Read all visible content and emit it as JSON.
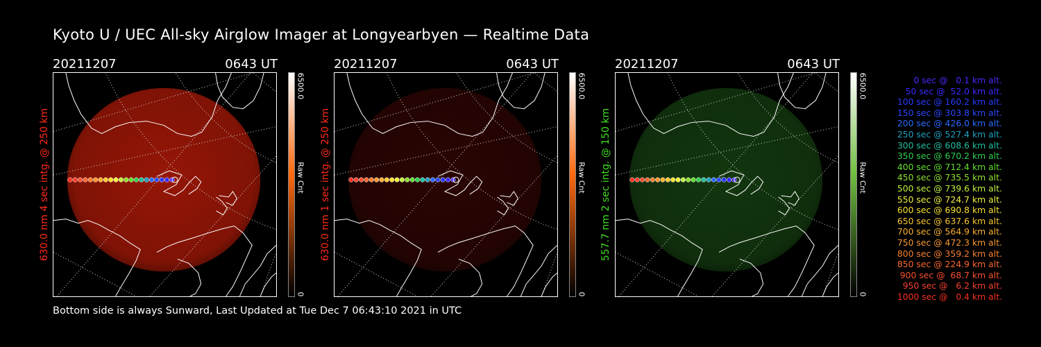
{
  "title": "Kyoto U / UEC All-sky Airglow Imager at Longyearbyen — Realtime Data",
  "panels": [
    {
      "date": "20211207",
      "time": "0643 UT",
      "ylabel": "630.0 nm 4 sec intg. @ 250 km",
      "label_color": "#ff2a1a",
      "glow_color": "#b01a08",
      "glow_level": 0.85,
      "cbar_max": "6500.0",
      "cbar_min": "0",
      "cbar_unit": "Raw Cnt",
      "cbar_top": "#ffffff",
      "cbar_mid": "#ff6a10",
      "cbar_bottom": "#000000"
    },
    {
      "date": "20211207",
      "time": "0643 UT",
      "ylabel": "630.0 nm 1 sec intg. @ 250 km",
      "label_color": "#ff2a1a",
      "glow_color": "#4a0904",
      "glow_level": 0.55,
      "cbar_max": "6500.0",
      "cbar_min": "0",
      "cbar_unit": "Raw Cnt",
      "cbar_top": "#ffffff",
      "cbar_mid": "#ff6a10",
      "cbar_bottom": "#000000"
    },
    {
      "date": "20211207",
      "time": "0643 UT",
      "ylabel": "557.7 nm 2 sec intg. @ 150 km",
      "label_color": "#40e020",
      "glow_color": "#1e5a18",
      "glow_level": 0.6,
      "cbar_max": "6500.0",
      "cbar_min": "0",
      "cbar_unit": "Raw Cnt",
      "cbar_top": "#ffffff",
      "cbar_mid": "#70c040",
      "cbar_bottom": "#000000"
    }
  ],
  "footer": "Bottom side is always Sunward, Last Updated at Tue Dec  7 06:43:10 2021 in UTC",
  "legend": [
    {
      "text": "0 sec @   0.1 km alt.",
      "color": "#4a2aff"
    },
    {
      "text": "50 sec @  52.0 km alt.",
      "color": "#3a2aff"
    },
    {
      "text": "100 sec @ 160.2 km alt.",
      "color": "#2a3aff"
    },
    {
      "text": "150 sec @ 303.8 km alt.",
      "color": "#2a4aff"
    },
    {
      "text": "200 sec @ 426.0 km alt.",
      "color": "#2a6aff"
    },
    {
      "text": "250 sec @ 527.4 km alt.",
      "color": "#20a0c0"
    },
    {
      "text": "300 sec @ 608.6 km alt.",
      "color": "#20c0a0"
    },
    {
      "text": "350 sec @ 670.2 km alt.",
      "color": "#30d050"
    },
    {
      "text": "400 sec @ 712.4 km alt.",
      "color": "#60e030"
    },
    {
      "text": "450 sec @ 735.5 km alt.",
      "color": "#90e030"
    },
    {
      "text": "500 sec @ 739.6 km alt.",
      "color": "#c0f040"
    },
    {
      "text": "550 sec @ 724.7 km alt.",
      "color": "#f0f040"
    },
    {
      "text": "600 sec @ 690.8 km alt.",
      "color": "#f8e030"
    },
    {
      "text": "650 sec @ 637.6 km alt.",
      "color": "#f8c830"
    },
    {
      "text": "700 sec @ 564.9 km alt.",
      "color": "#f8b030"
    },
    {
      "text": "750 sec @ 472.3 km alt.",
      "color": "#f89830"
    },
    {
      "text": "800 sec @ 359.2 km alt.",
      "color": "#f88030"
    },
    {
      "text": "850 sec @ 224.9 km alt.",
      "color": "#f86830"
    },
    {
      "text": "900 sec @  68.7 km alt.",
      "color": "#f85030"
    },
    {
      "text": "950 sec @   6.2 km alt.",
      "color": "#f84030"
    },
    {
      "text": "1000 sec @   0.4 km alt.",
      "color": "#f83020"
    }
  ]
}
